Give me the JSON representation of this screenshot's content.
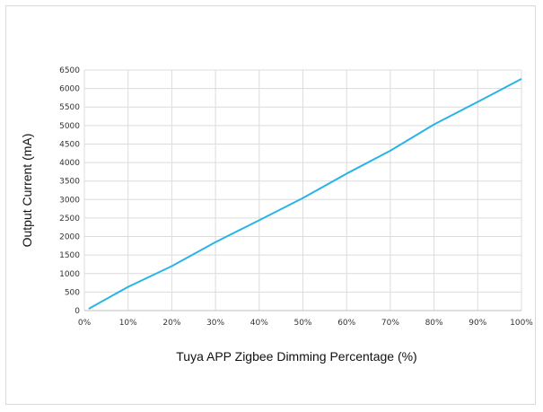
{
  "chart_data": {
    "type": "line",
    "title": "",
    "xlabel": "Tuya APP Zigbee Dimming Percentage (%)",
    "ylabel": "Output Current (mA)",
    "x": [
      1,
      10,
      20,
      30,
      40,
      50,
      60,
      70,
      80,
      90,
      100
    ],
    "x_ticks": [
      "0%",
      "10%",
      "20%",
      "30%",
      "40%",
      "50%",
      "60%",
      "70%",
      "80%",
      "90%",
      "100%"
    ],
    "y_ticks": [
      "0",
      "500",
      "1000",
      "1500",
      "2000",
      "2500",
      "3000",
      "3500",
      "4000",
      "4500",
      "5000",
      "5500",
      "6000",
      "6500"
    ],
    "xlim": [
      0,
      100
    ],
    "ylim": [
      0,
      6500
    ],
    "grid": true,
    "legend": "none",
    "series": [
      {
        "values": [
          50,
          640,
          1200,
          1850,
          2440,
          3040,
          3700,
          4320,
          5030,
          5640,
          6260
        ],
        "color": "#2ab4e6"
      }
    ]
  }
}
